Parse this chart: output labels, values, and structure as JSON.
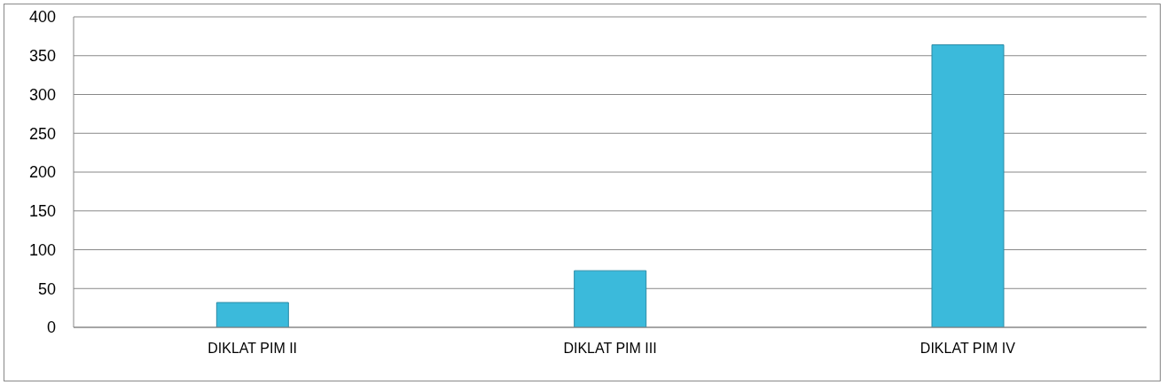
{
  "chart_data": {
    "type": "bar",
    "categories": [
      "DIKLAT PIM II",
      "DIKLAT PIM III",
      "DIKLAT PIM IV"
    ],
    "values": [
      32,
      73,
      364
    ],
    "color": "#3bbadb",
    "ylim": [
      0,
      400
    ],
    "yticks": [
      0,
      50,
      100,
      150,
      200,
      250,
      300,
      350,
      400
    ],
    "grid": "y"
  }
}
